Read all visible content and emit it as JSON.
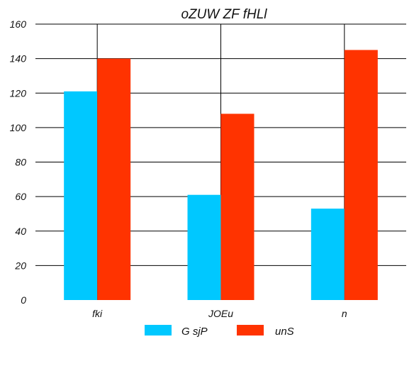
{
  "chart_data": {
    "type": "bar",
    "title": "oZUW ZF  fHLl",
    "xlabel": "",
    "ylabel": "",
    "categories": [
      "fki",
      "JOEu",
      "n"
    ],
    "ylim": [
      0,
      160
    ],
    "yticks": [
      0,
      20,
      40,
      60,
      80,
      100,
      120,
      140,
      160
    ],
    "grid": true,
    "legend_position": "bottom",
    "series": [
      {
        "name": "G sjP",
        "color": "#00c8ff",
        "values": [
          121,
          61,
          53
        ]
      },
      {
        "name": "unS",
        "color": "#ff3300",
        "values": [
          140,
          108,
          145
        ]
      }
    ]
  }
}
